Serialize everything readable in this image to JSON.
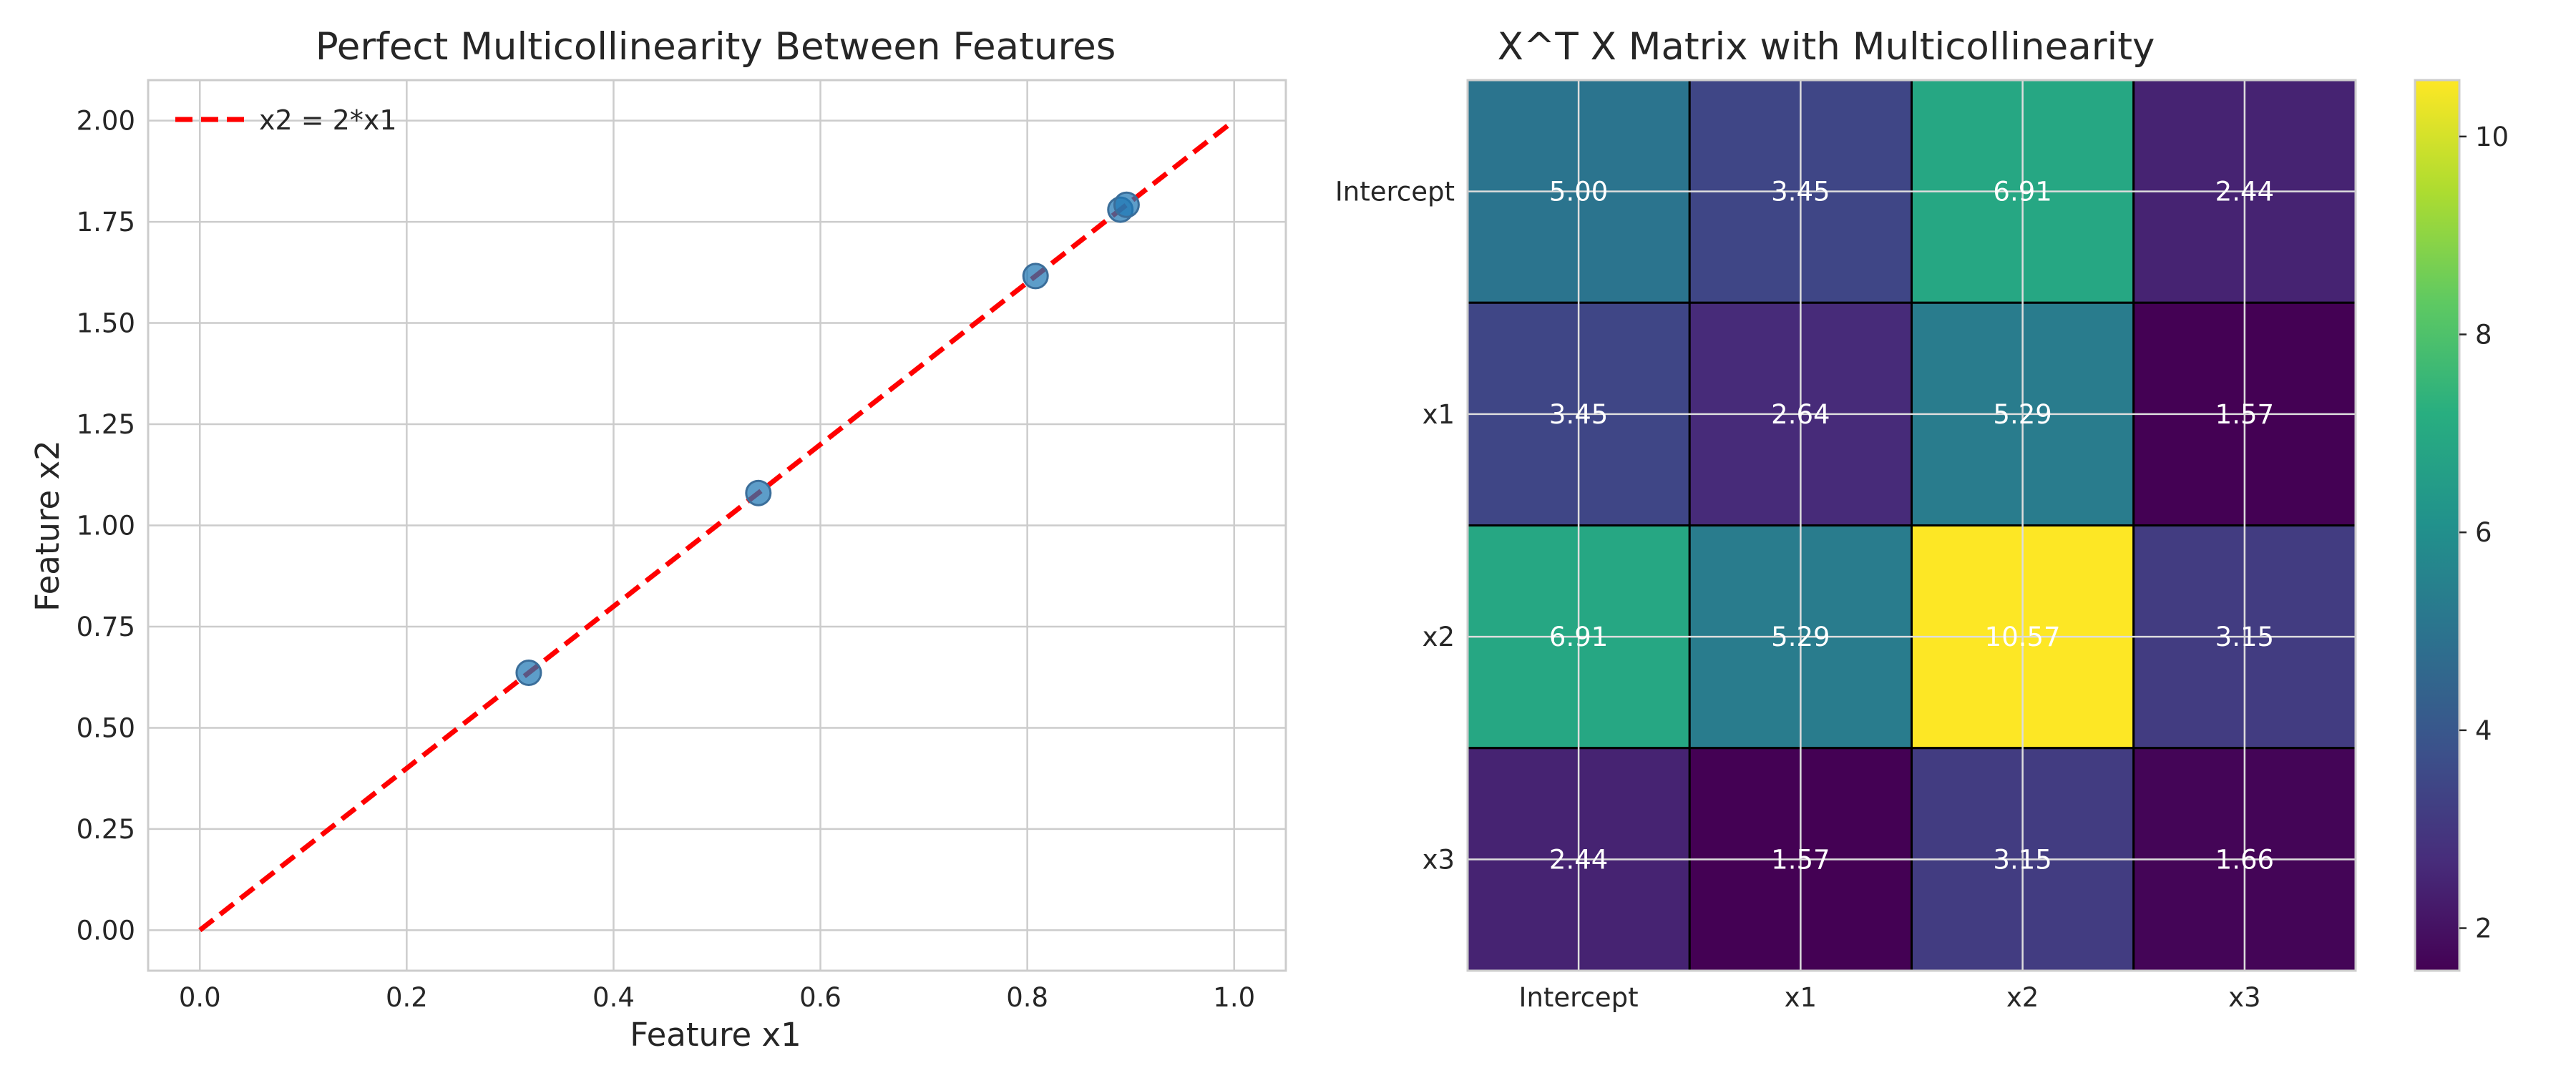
{
  "chart_data": [
    {
      "type": "scatter",
      "title": "Perfect Multicollinearity Between Features",
      "xlabel": "Feature x1",
      "ylabel": "Feature x2",
      "xlim": [
        -0.05,
        1.05
      ],
      "ylim": [
        -0.1,
        2.1
      ],
      "xticks": [
        "0.0",
        "0.2",
        "0.4",
        "0.6",
        "0.8",
        "1.0"
      ],
      "yticks": [
        "0.00",
        "0.25",
        "0.50",
        "0.75",
        "1.00",
        "1.25",
        "1.50",
        "1.75",
        "2.00"
      ],
      "grid": true,
      "legend_position": "upper-left",
      "series": [
        {
          "kind": "scatter",
          "color": "#1f77b4",
          "points": [
            {
              "x": 0.318,
              "y": 0.636
            },
            {
              "x": 0.54,
              "y": 1.08
            },
            {
              "x": 0.808,
              "y": 1.616
            },
            {
              "x": 0.89,
              "y": 1.78
            },
            {
              "x": 0.896,
              "y": 1.792
            }
          ]
        },
        {
          "kind": "line",
          "name": "x2 = 2*x1",
          "color": "#ff0000",
          "style": "dashed",
          "points": [
            {
              "x": 0,
              "y": 0
            },
            {
              "x": 1,
              "y": 2
            }
          ]
        }
      ]
    },
    {
      "type": "heatmap",
      "title": "X^T X Matrix with Multicollinearity",
      "row_labels": [
        "Intercept",
        "x1",
        "x2",
        "x3"
      ],
      "col_labels": [
        "Intercept",
        "x1",
        "x2",
        "x3"
      ],
      "values": [
        [
          5.0,
          3.45,
          6.91,
          2.44
        ],
        [
          3.45,
          2.64,
          5.29,
          1.57
        ],
        [
          6.91,
          5.29,
          10.57,
          3.15
        ],
        [
          2.44,
          1.57,
          3.15,
          1.66
        ]
      ],
      "colormap": "viridis",
      "vmin": 1.57,
      "vmax": 10.57,
      "colorbar_ticks": [
        "2",
        "4",
        "6",
        "8",
        "10"
      ],
      "grid": true
    }
  ]
}
